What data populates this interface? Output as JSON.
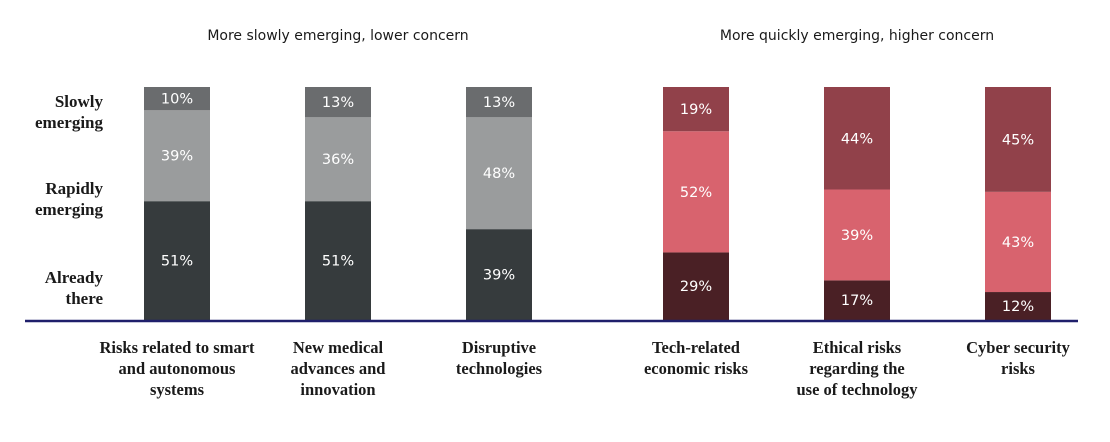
{
  "chart_data": {
    "type": "bar",
    "stacked": true,
    "percent": true,
    "ylim": [
      0,
      100
    ],
    "grid": false,
    "groups": [
      {
        "title": "More slowly emerging, lower concern",
        "categories": [
          0,
          1,
          2
        ],
        "palette": {
          "Already there": "#363b3d",
          "Rapidly emerging": "#9a9c9d",
          "Slowly emerging": "#6a6c6e"
        }
      },
      {
        "title": "More quickly emerging, higher concern",
        "categories": [
          3,
          4,
          5
        ],
        "palette": {
          "Already there": "#4a2025",
          "Rapidly emerging": "#d8636e",
          "Slowly emerging": "#91414a"
        }
      }
    ],
    "y_labels": [
      {
        "lines": [
          "Slowly",
          "emerging"
        ]
      },
      {
        "lines": [
          "Rapidly",
          "emerging"
        ]
      },
      {
        "lines": [
          "Already",
          "there"
        ]
      }
    ],
    "series_order": [
      "Already there",
      "Rapidly emerging",
      "Slowly emerging"
    ],
    "categories": [
      {
        "lines": [
          "Risks related to smart",
          "and autonomous",
          "systems"
        ],
        "values": {
          "Already there": 51,
          "Rapidly emerging": 39,
          "Slowly emerging": 10
        }
      },
      {
        "lines": [
          "New medical",
          "advances and",
          "innovation"
        ],
        "values": {
          "Already there": 51,
          "Rapidly emerging": 36,
          "Slowly emerging": 13
        }
      },
      {
        "lines": [
          "Disruptive",
          "technologies"
        ],
        "values": {
          "Already there": 39,
          "Rapidly emerging": 48,
          "Slowly emerging": 13
        }
      },
      {
        "lines": [
          "Tech-related",
          "economic risks"
        ],
        "values": {
          "Already there": 29,
          "Rapidly emerging": 52,
          "Slowly emerging": 19
        }
      },
      {
        "lines": [
          "Ethical risks",
          "regarding the",
          "use of technology"
        ],
        "values": {
          "Already there": 17,
          "Rapidly emerging": 39,
          "Slowly emerging": 44
        }
      },
      {
        "lines": [
          "Cyber security",
          "risks"
        ],
        "values": {
          "Already there": 12,
          "Rapidly emerging": 43,
          "Slowly emerging": 45
        }
      }
    ],
    "axis_color": "#1f1f6b"
  }
}
